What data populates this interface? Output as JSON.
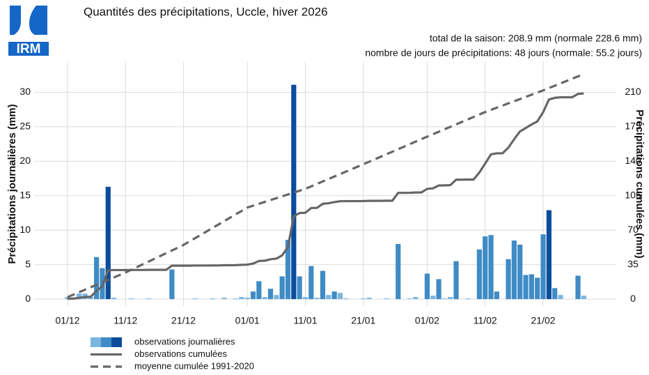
{
  "logo": "IRM",
  "chart_data": {
    "type": "bar",
    "title": "Quantités des précipitations, Uccle, hiver 2026",
    "subtitle": [
      "total de la saison: 208.9 mm (normale 228.6 mm)",
      "nombre de jours de précipitations: 48 jours (normale: 55.2 jours)"
    ],
    "ylabel": "Précipitations journalières (mm)",
    "y2label": "Précipitations cumulées (mm)",
    "categories": [
      "01/12",
      null,
      null,
      null,
      null,
      null,
      null,
      null,
      null,
      null,
      "11/12",
      null,
      null,
      null,
      null,
      null,
      null,
      null,
      null,
      null,
      "21/12",
      null,
      null,
      null,
      null,
      null,
      null,
      null,
      null,
      null,
      null,
      "01/01",
      null,
      null,
      null,
      null,
      null,
      null,
      null,
      null,
      null,
      "11/01",
      null,
      null,
      null,
      null,
      null,
      null,
      null,
      null,
      null,
      "21/01",
      null,
      null,
      null,
      null,
      null,
      null,
      null,
      null,
      null,
      null,
      "01/02",
      null,
      null,
      null,
      null,
      null,
      null,
      null,
      null,
      null,
      "11/02",
      null,
      null,
      null,
      null,
      null,
      null,
      null,
      null,
      null,
      "21/02",
      null,
      null,
      null,
      null,
      null,
      null,
      null
    ],
    "ylim": [
      -1,
      34.5
    ],
    "yticks": [
      0,
      5,
      10,
      15,
      20,
      25,
      30
    ],
    "y2lim": [
      -7,
      241.5
    ],
    "y2ticks": [
      0,
      35,
      70,
      105,
      140,
      175,
      210
    ],
    "grid": true,
    "series": [
      {
        "name": "observations journalières",
        "type": "bar",
        "legend_colors": [
          "#7ab6e0",
          "#3f8bc5",
          "#0b4c9c"
        ],
        "values": [
          0.3,
          0.2,
          0.8,
          0.8,
          0.3,
          6.1,
          4.5,
          16.3,
          0.2,
          0,
          0,
          0.1,
          0,
          0,
          0.1,
          0,
          0,
          0,
          4.3,
          0,
          0,
          0,
          0.1,
          0,
          0,
          0.1,
          0,
          0.2,
          0,
          0.1,
          0.3,
          0.2,
          1.1,
          2.6,
          0.3,
          1.5,
          0.6,
          3.3,
          8.6,
          31.1,
          3.3,
          0.3,
          4.8,
          0.2,
          4.1,
          0.6,
          1.1,
          0.9,
          0.1,
          0,
          0,
          0.1,
          0.2,
          0,
          0,
          0.1,
          0,
          8.0,
          0,
          0.1,
          0.3,
          0,
          3.7,
          0.5,
          2.9,
          0.1,
          0.3,
          5.5,
          0,
          0.1,
          0,
          7.2,
          9.1,
          9.3,
          1.1,
          0,
          5.8,
          8.5,
          7.9,
          3.5,
          3.6,
          3.1,
          9.4,
          12.9,
          1.6,
          0.6,
          0,
          0,
          3.4,
          0.5
        ],
        "colors": [
          "#7ab6e0",
          "#7ab6e0",
          "#7ab6e0",
          "#7ab6e0",
          "#7ab6e0",
          "#3f8bc5",
          "#3f8bc5",
          "#0b4c9c",
          "#7ab6e0",
          "#7ab6e0",
          "#7ab6e0",
          "#7ab6e0",
          "#7ab6e0",
          "#7ab6e0",
          "#7ab6e0",
          "#7ab6e0",
          "#7ab6e0",
          "#7ab6e0",
          "#3f8bc5",
          "#7ab6e0",
          "#7ab6e0",
          "#7ab6e0",
          "#7ab6e0",
          "#7ab6e0",
          "#7ab6e0",
          "#7ab6e0",
          "#7ab6e0",
          "#7ab6e0",
          "#7ab6e0",
          "#7ab6e0",
          "#7ab6e0",
          "#7ab6e0",
          "#3f8bc5",
          "#3f8bc5",
          "#7ab6e0",
          "#3f8bc5",
          "#7ab6e0",
          "#3f8bc5",
          "#3f8bc5",
          "#0b4c9c",
          "#3f8bc5",
          "#7ab6e0",
          "#3f8bc5",
          "#7ab6e0",
          "#3f8bc5",
          "#7ab6e0",
          "#3f8bc5",
          "#7ab6e0",
          "#7ab6e0",
          "#7ab6e0",
          "#7ab6e0",
          "#7ab6e0",
          "#7ab6e0",
          "#7ab6e0",
          "#7ab6e0",
          "#7ab6e0",
          "#7ab6e0",
          "#3f8bc5",
          "#7ab6e0",
          "#7ab6e0",
          "#7ab6e0",
          "#7ab6e0",
          "#3f8bc5",
          "#7ab6e0",
          "#3f8bc5",
          "#7ab6e0",
          "#7ab6e0",
          "#3f8bc5",
          "#7ab6e0",
          "#7ab6e0",
          "#7ab6e0",
          "#3f8bc5",
          "#3f8bc5",
          "#3f8bc5",
          "#3f8bc5",
          "#7ab6e0",
          "#3f8bc5",
          "#3f8bc5",
          "#3f8bc5",
          "#3f8bc5",
          "#3f8bc5",
          "#3f8bc5",
          "#3f8bc5",
          "#0b4c9c",
          "#3f8bc5",
          "#7ab6e0",
          "#7ab6e0",
          "#7ab6e0",
          "#3f8bc5",
          "#7ab6e0"
        ]
      },
      {
        "name": "observations cumulées",
        "type": "line",
        "axis": "y2",
        "color": "#666666",
        "dashed": false,
        "values": [
          0.3,
          0.5,
          1.3,
          2.1,
          2.4,
          8.5,
          13.0,
          29.3,
          29.5,
          29.5,
          29.5,
          29.6,
          29.6,
          29.6,
          29.7,
          29.7,
          29.7,
          29.7,
          34.0,
          34.0,
          34.0,
          34.0,
          34.1,
          34.1,
          34.1,
          34.2,
          34.2,
          34.4,
          34.4,
          34.5,
          34.8,
          35.0,
          36.1,
          38.7,
          39.0,
          40.5,
          41.1,
          44.4,
          53.0,
          84.1,
          87.4,
          87.7,
          92.5,
          92.7,
          96.8,
          97.4,
          98.5,
          99.4,
          99.5,
          99.5,
          99.5,
          99.6,
          99.8,
          99.8,
          99.8,
          99.9,
          99.9,
          107.9,
          107.9,
          108.0,
          108.3,
          108.3,
          112.0,
          112.5,
          115.4,
          115.5,
          115.8,
          121.3,
          121.3,
          121.4,
          121.4,
          128.6,
          137.7,
          147.0,
          148.1,
          148.1,
          153.9,
          162.4,
          170.3,
          173.8,
          177.4,
          180.5,
          189.9,
          202.8,
          204.4,
          205.0,
          205.0,
          205.0,
          208.4,
          208.9
        ]
      },
      {
        "name": "moyenne cumulée 1991-2020",
        "type": "line",
        "axis": "y2",
        "color": "#666666",
        "dashed": true,
        "values": [
          2,
          4.5,
          7,
          9.5,
          12,
          14.5,
          17,
          19.5,
          22,
          24.5,
          27,
          29.8,
          32.6,
          35.4,
          38.2,
          41,
          43.8,
          46.6,
          49.4,
          52.2,
          55,
          58.5,
          61.9,
          65.4,
          68.8,
          72.3,
          75.7,
          79.2,
          82.6,
          86.1,
          89.5,
          93,
          94.9,
          96.8,
          98.7,
          100.6,
          102.5,
          104.4,
          106.3,
          108.2,
          110.1,
          112,
          114.5,
          117,
          119.5,
          122,
          124.5,
          127,
          129.5,
          132,
          134.5,
          137,
          139.5,
          142.1,
          144.6,
          147.2,
          149.7,
          152.3,
          154.8,
          157.4,
          159.9,
          162.5,
          165,
          167.5,
          170,
          172.5,
          175,
          177.5,
          180,
          182.5,
          185,
          187.5,
          190,
          192.2,
          194.4,
          196.6,
          198.8,
          201,
          203.2,
          205.4,
          207.6,
          209.8,
          212,
          214.4,
          216.7,
          219.1,
          221.5,
          223.9,
          226.2,
          228.6
        ]
      }
    ]
  }
}
